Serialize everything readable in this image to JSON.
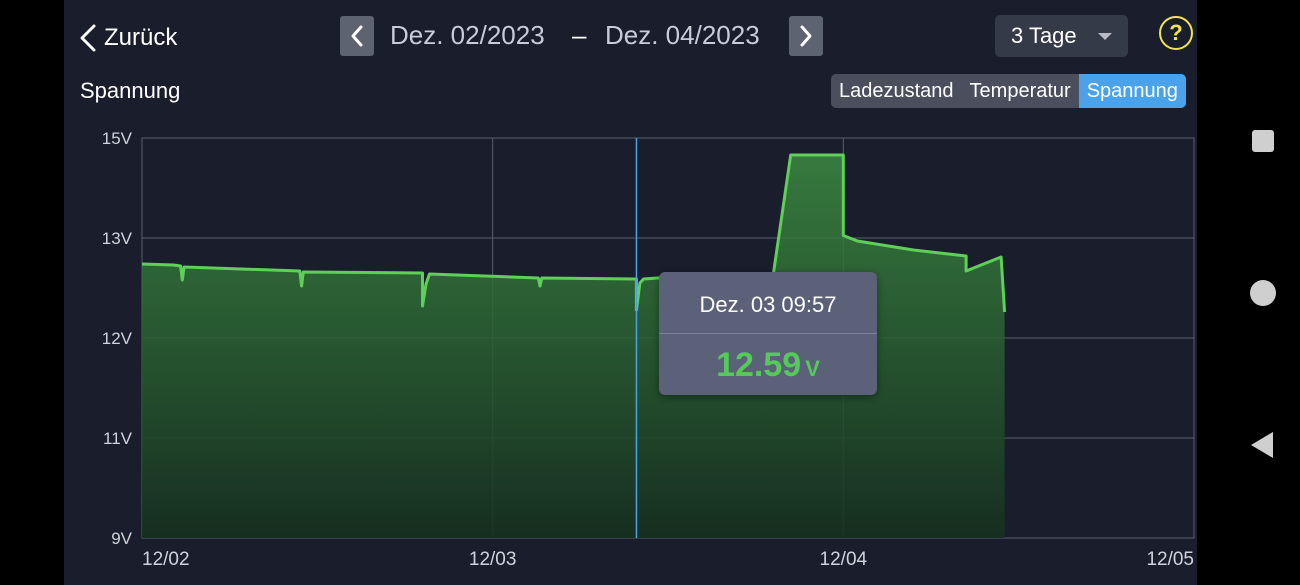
{
  "header": {
    "back_label": "Zurück",
    "date_from": "Dez. 02/2023",
    "dash": "–",
    "date_to": "Dez. 04/2023",
    "range_label": "3 Tage",
    "help_label": "?"
  },
  "section": {
    "title": "Spannung"
  },
  "tabs": [
    {
      "label": "Ladezustand",
      "active": false
    },
    {
      "label": "Temperatur",
      "active": false
    },
    {
      "label": "Spannung",
      "active": true
    }
  ],
  "tooltip": {
    "time": "Dez. 03 09:57",
    "value": "12.59",
    "unit": "V"
  },
  "colors": {
    "accent": "#4aa3ea",
    "line": "#5fcf5a",
    "help": "#f1e54a"
  },
  "icons": {
    "back": "chevron-left-icon",
    "prev": "chevron-left-icon",
    "next": "chevron-right-icon",
    "dropdown": "caret-down-icon",
    "help": "question-mark-icon",
    "sys_recents": "square-icon",
    "sys_home": "circle-icon",
    "sys_back": "triangle-left-icon"
  },
  "chart_data": {
    "type": "area",
    "xlabel": "",
    "ylabel": "",
    "x_ticks": [
      "12/02",
      "12/03",
      "12/04",
      "12/05"
    ],
    "y_ticks": [
      "15V",
      "13V",
      "12V",
      "11V",
      "9V"
    ],
    "grid": true,
    "crosshair_x": 1.41,
    "series": [
      {
        "x": [
          0,
          0.09,
          0.11,
          0.115,
          0.12,
          0.45,
          0.455,
          0.46,
          0.8,
          0.8,
          0.81,
          0.82,
          1.13,
          1.135,
          1.14,
          1.41,
          1.41,
          1.42,
          1.43,
          1.55,
          1.8,
          1.85,
          1.88,
          2.0,
          2.0,
          2.04,
          2.2,
          2.35,
          2.35,
          2.45,
          2.46
        ],
        "y": [
          12.74,
          12.73,
          12.72,
          12.58,
          12.71,
          12.67,
          12.52,
          12.66,
          12.65,
          12.32,
          12.54,
          12.64,
          12.6,
          12.52,
          12.6,
          12.59,
          12.28,
          12.55,
          12.59,
          12.62,
          12.63,
          14.66,
          14.66,
          14.66,
          13.05,
          12.97,
          12.88,
          12.82,
          12.67,
          12.81,
          12.26
        ]
      }
    ]
  }
}
